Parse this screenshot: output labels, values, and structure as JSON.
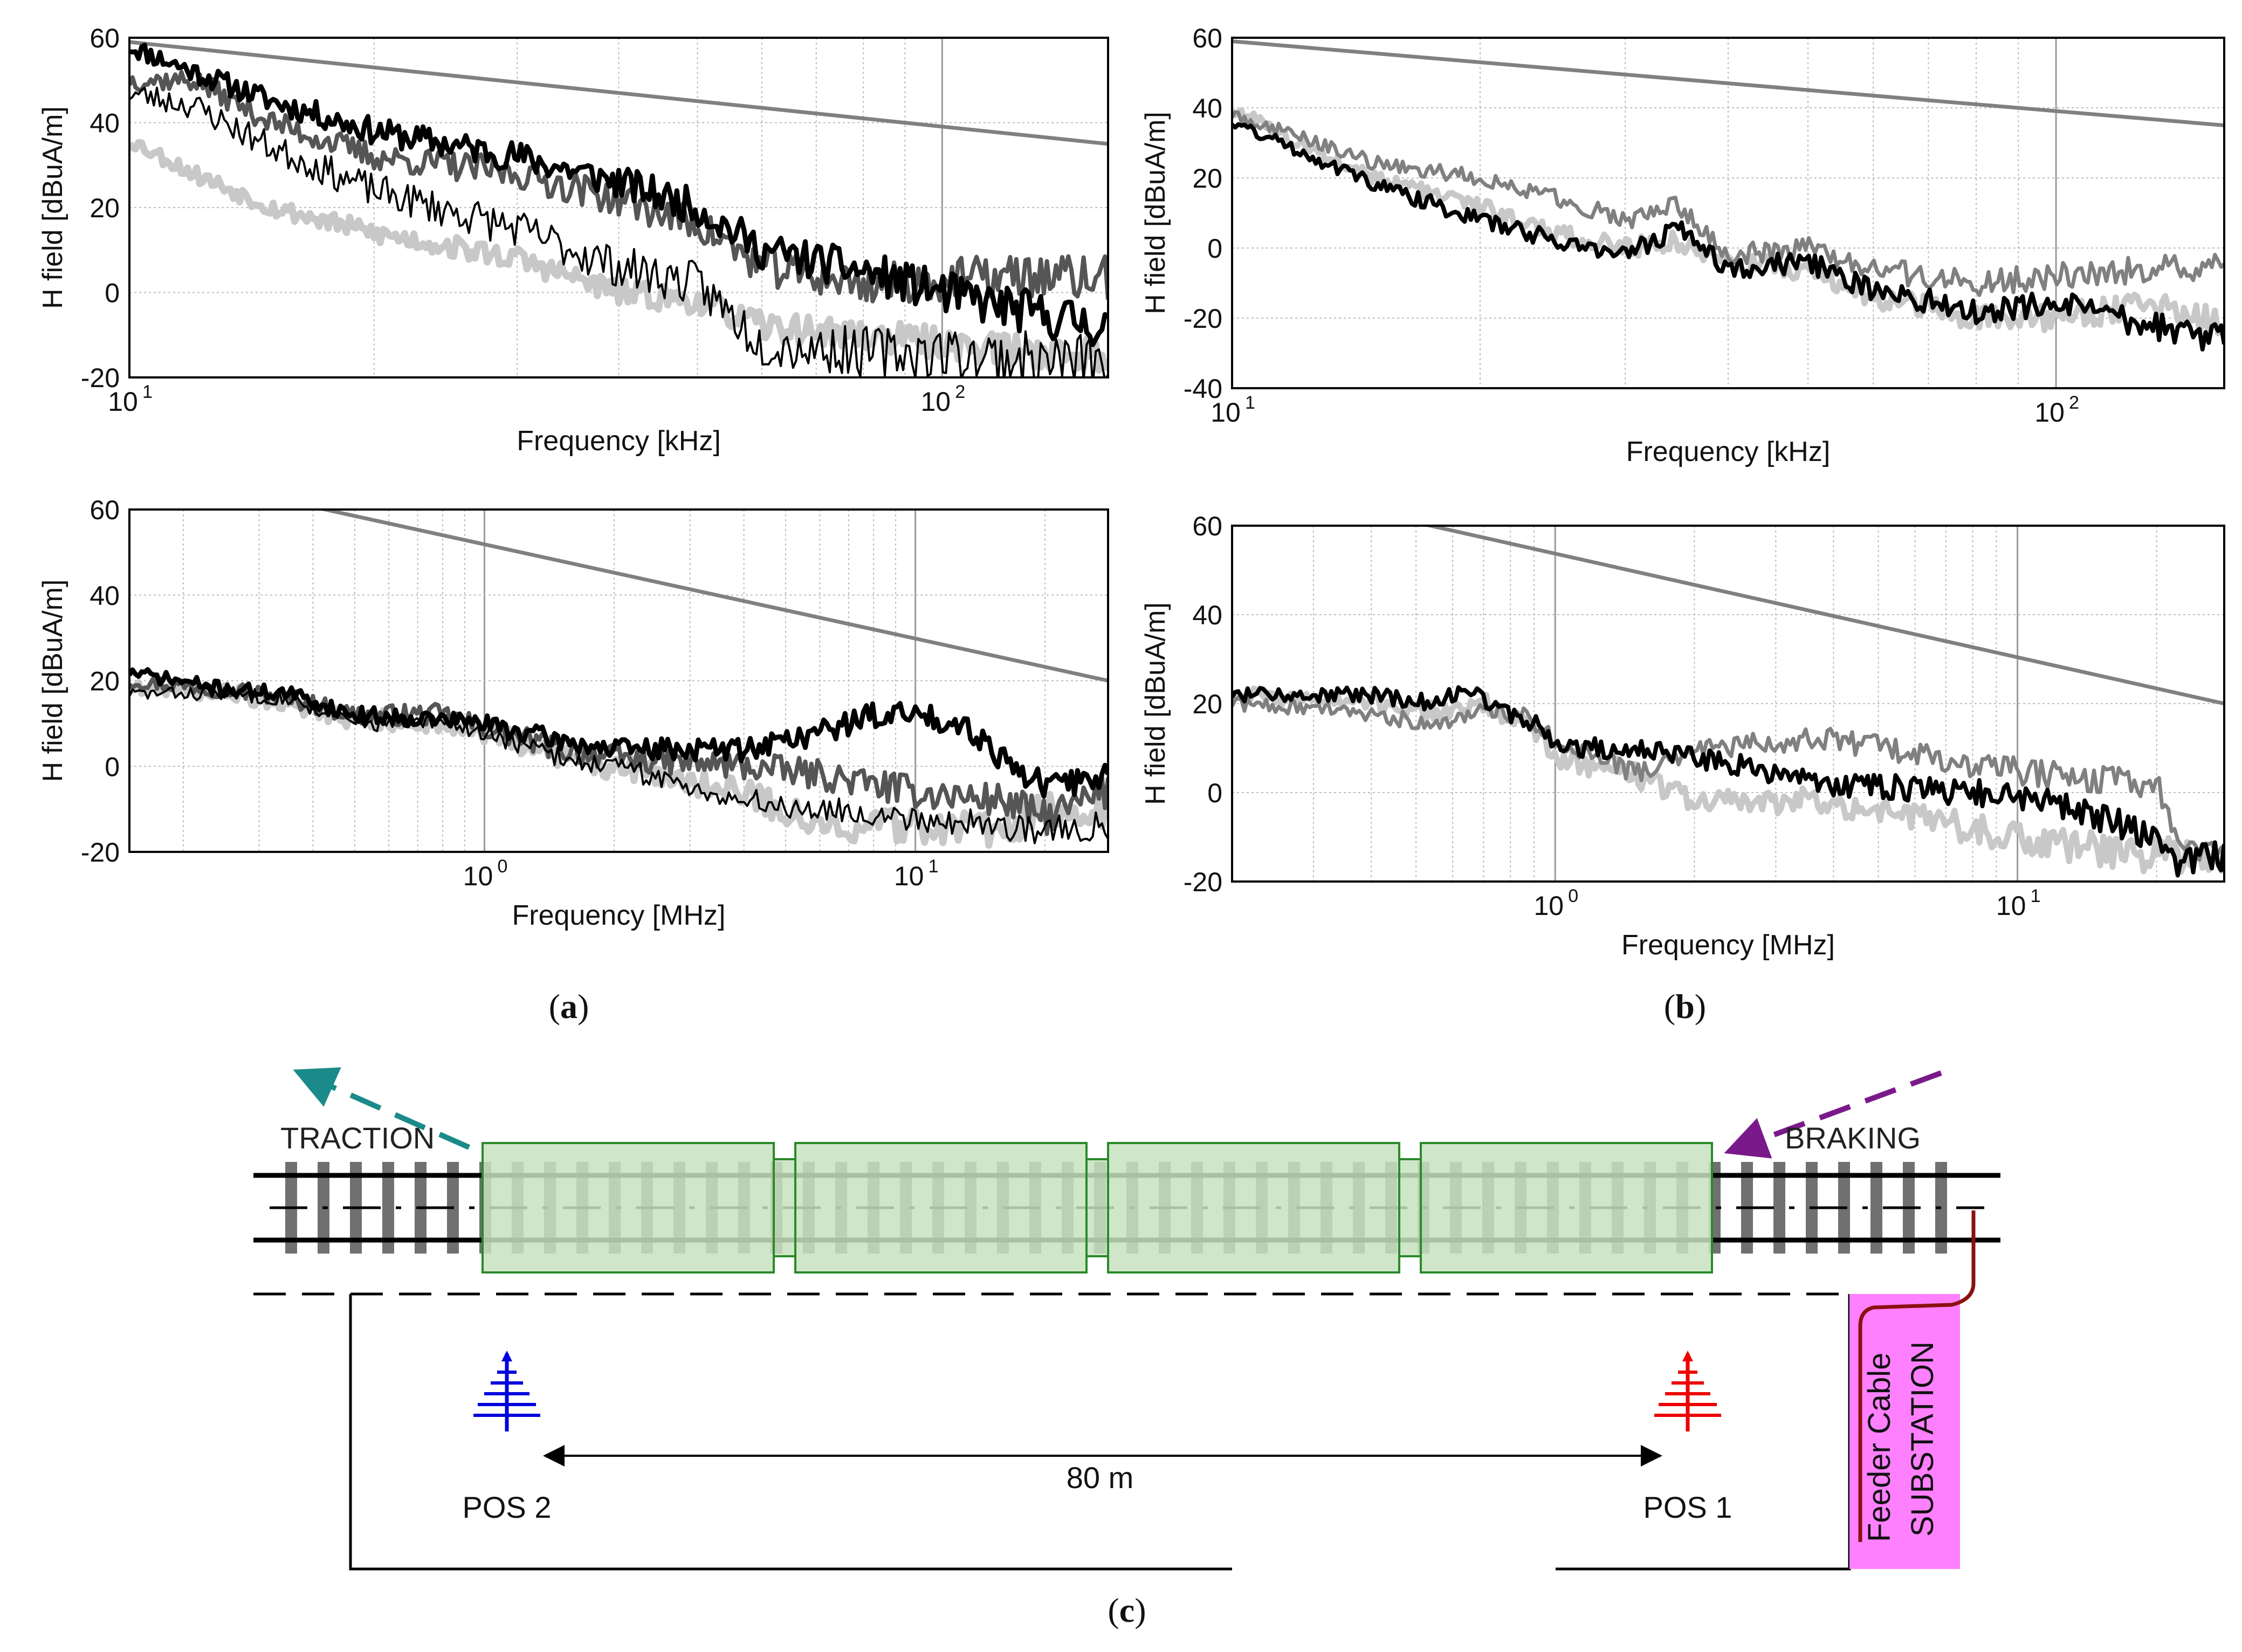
{
  "style": {
    "limit_color": "#808080",
    "series_black": "#000000",
    "series_dark_gray": "#555555",
    "series_mid_gray": "#808080",
    "series_light_gray": "#c8c8c8"
  },
  "captions": {
    "a": "a",
    "b": "b",
    "c": "c"
  },
  "chart_data": [
    {
      "id": "a-low",
      "type": "line",
      "xscale": "log",
      "xlim": [
        10,
        160
      ],
      "ylim": [
        -20,
        60
      ],
      "yticks": [
        -20,
        0,
        20,
        40,
        60
      ],
      "xticks": [
        {
          "v": 10,
          "b": "10",
          "e": "1"
        },
        {
          "v": 100,
          "b": "10",
          "e": "2"
        }
      ],
      "xlabel": "Frequency [kHz]",
      "ylabel": "H field [dBuA/m]",
      "limit_line": {
        "x": [
          10,
          160
        ],
        "y": [
          59,
          35
        ]
      },
      "series": [
        {
          "name": "black thick",
          "color": "#000000",
          "width": 9,
          "seed": 11,
          "noise": 4,
          "points": [
            [
              10,
              58
            ],
            [
              12,
              52
            ],
            [
              15,
              45
            ],
            [
              20,
              38
            ],
            [
              30,
              32
            ],
            [
              40,
              26
            ],
            [
              50,
              20
            ],
            [
              60,
              10
            ],
            [
              80,
              5
            ],
            [
              100,
              0
            ],
            [
              130,
              -5
            ],
            [
              160,
              -8
            ]
          ]
        },
        {
          "name": "black thin",
          "color": "#000000",
          "width": 4,
          "seed": 23,
          "noise": 5,
          "points": [
            [
              10,
              47
            ],
            [
              12,
              44
            ],
            [
              15,
              34
            ],
            [
              20,
              24
            ],
            [
              30,
              15
            ],
            [
              40,
              6
            ],
            [
              50,
              2
            ],
            [
              60,
              -12
            ],
            [
              80,
              -14
            ],
            [
              100,
              -14
            ],
            [
              130,
              -16
            ],
            [
              160,
              -16
            ]
          ]
        },
        {
          "name": "dark gray",
          "color": "#555555",
          "width": 8,
          "seed": 37,
          "noise": 4,
          "points": [
            [
              10,
              50
            ],
            [
              12,
              50
            ],
            [
              15,
              40
            ],
            [
              20,
              32
            ],
            [
              30,
              28
            ],
            [
              40,
              22
            ],
            [
              50,
              16
            ],
            [
              60,
              6
            ],
            [
              80,
              2
            ],
            [
              100,
              3
            ],
            [
              130,
              4
            ],
            [
              160,
              3
            ]
          ]
        },
        {
          "name": "light gray",
          "color": "#c8c8c8",
          "width": 13,
          "seed": 53,
          "noise": 3,
          "points": [
            [
              10,
              36
            ],
            [
              12,
              28
            ],
            [
              15,
              20
            ],
            [
              20,
              14
            ],
            [
              30,
              8
            ],
            [
              40,
              0
            ],
            [
              50,
              -2
            ],
            [
              60,
              -8
            ],
            [
              80,
              -10
            ],
            [
              100,
              -12
            ],
            [
              130,
              -14
            ],
            [
              160,
              -15
            ]
          ]
        }
      ]
    },
    {
      "id": "a-high",
      "type": "line",
      "xscale": "log",
      "xlim": [
        0.15,
        28
      ],
      "ylim": [
        -20,
        60
      ],
      "yticks": [
        -20,
        0,
        20,
        40,
        60
      ],
      "xticks": [
        {
          "v": 1,
          "b": "10",
          "e": "0"
        },
        {
          "v": 10,
          "b": "10",
          "e": "1"
        }
      ],
      "xlabel": "Frequency [MHz]",
      "ylabel": "H field [dBuA/m]",
      "limit_line": {
        "x": [
          0.15,
          28
        ],
        "y": [
          70,
          20
        ]
      },
      "series": [
        {
          "name": "black thick",
          "color": "#000000",
          "width": 9,
          "seed": 71,
          "noise": 2.5,
          "points": [
            [
              0.15,
              22
            ],
            [
              0.25,
              18
            ],
            [
              0.35,
              17
            ],
            [
              0.5,
              12
            ],
            [
              0.8,
              11
            ],
            [
              1,
              10
            ],
            [
              1.5,
              6
            ],
            [
              2,
              4
            ],
            [
              4,
              4
            ],
            [
              6,
              8
            ],
            [
              8,
              12
            ],
            [
              10,
              12
            ],
            [
              13,
              10
            ],
            [
              16,
              2
            ],
            [
              20,
              -5
            ],
            [
              28,
              -2
            ]
          ]
        },
        {
          "name": "black thin",
          "color": "#000000",
          "width": 4,
          "seed": 83,
          "noise": 2.5,
          "points": [
            [
              0.15,
              17
            ],
            [
              0.25,
              17
            ],
            [
              0.35,
              16
            ],
            [
              0.5,
              10
            ],
            [
              0.8,
              10
            ],
            [
              1,
              8
            ],
            [
              1.5,
              2
            ],
            [
              2,
              0
            ],
            [
              4,
              -8
            ],
            [
              6,
              -10
            ],
            [
              10,
              -12
            ],
            [
              16,
              -14
            ],
            [
              20,
              -15
            ],
            [
              28,
              -14
            ]
          ]
        },
        {
          "name": "dark gray",
          "color": "#555555",
          "width": 8,
          "seed": 97,
          "noise": 3,
          "points": [
            [
              0.15,
              20
            ],
            [
              0.25,
              18
            ],
            [
              0.35,
              16
            ],
            [
              0.5,
              12
            ],
            [
              0.8,
              12
            ],
            [
              1,
              9
            ],
            [
              1.5,
              4
            ],
            [
              2,
              2
            ],
            [
              4,
              0
            ],
            [
              6,
              -2
            ],
            [
              10,
              -6
            ],
            [
              16,
              -8
            ],
            [
              20,
              -12
            ],
            [
              28,
              -6
            ]
          ]
        },
        {
          "name": "light gray",
          "color": "#c8c8c8",
          "width": 13,
          "seed": 109,
          "noise": 3,
          "points": [
            [
              0.15,
              19
            ],
            [
              0.25,
              17
            ],
            [
              0.35,
              15
            ],
            [
              0.5,
              11
            ],
            [
              0.8,
              10
            ],
            [
              1,
              8
            ],
            [
              1.5,
              2
            ],
            [
              2,
              0
            ],
            [
              4,
              -6
            ],
            [
              6,
              -14
            ],
            [
              10,
              -14
            ],
            [
              16,
              -15
            ],
            [
              20,
              -10
            ],
            [
              28,
              -10
            ]
          ]
        }
      ]
    },
    {
      "id": "b-low",
      "type": "line",
      "xscale": "log",
      "xlim": [
        10,
        160
      ],
      "ylim": [
        -40,
        60
      ],
      "yticks": [
        -40,
        -20,
        0,
        20,
        40,
        60
      ],
      "xticks": [
        {
          "v": 10,
          "b": "10",
          "e": "1"
        },
        {
          "v": 100,
          "b": "10",
          "e": "2"
        }
      ],
      "xlabel": "Frequency [kHz]",
      "ylabel": "H field [dBuA/m]",
      "limit_line": {
        "x": [
          10,
          160
        ],
        "y": [
          59,
          35
        ]
      },
      "series": [
        {
          "name": "black",
          "color": "#000000",
          "width": 8,
          "seed": 131,
          "noise": 3,
          "points": [
            [
              10,
              36
            ],
            [
              12,
              28
            ],
            [
              15,
              18
            ],
            [
              20,
              8
            ],
            [
              25,
              2
            ],
            [
              30,
              -2
            ],
            [
              35,
              6
            ],
            [
              40,
              -6
            ],
            [
              50,
              -4
            ],
            [
              60,
              -12
            ],
            [
              80,
              -18
            ],
            [
              100,
              -16
            ],
            [
              130,
              -22
            ],
            [
              160,
              -26
            ]
          ]
        },
        {
          "name": "dark gray",
          "color": "#808080",
          "width": 7,
          "seed": 149,
          "noise": 3,
          "points": [
            [
              10,
              38
            ],
            [
              12,
              32
            ],
            [
              15,
              24
            ],
            [
              20,
              20
            ],
            [
              25,
              14
            ],
            [
              30,
              8
            ],
            [
              35,
              12
            ],
            [
              40,
              -2
            ],
            [
              50,
              0
            ],
            [
              60,
              -6
            ],
            [
              80,
              -10
            ],
            [
              100,
              -8
            ],
            [
              130,
              -6
            ],
            [
              160,
              -6
            ]
          ]
        },
        {
          "name": "light gray",
          "color": "#c8c8c8",
          "width": 11,
          "seed": 163,
          "noise": 3,
          "points": [
            [
              10,
              40
            ],
            [
              12,
              30
            ],
            [
              15,
              20
            ],
            [
              20,
              12
            ],
            [
              25,
              4
            ],
            [
              30,
              0
            ],
            [
              35,
              2
            ],
            [
              40,
              -4
            ],
            [
              50,
              -6
            ],
            [
              60,
              -14
            ],
            [
              80,
              -20
            ],
            [
              100,
              -20
            ],
            [
              130,
              -16
            ],
            [
              160,
              -22
            ]
          ]
        }
      ]
    },
    {
      "id": "b-high",
      "type": "line",
      "xscale": "log",
      "xlim": [
        0.2,
        28
      ],
      "ylim": [
        -20,
        60
      ],
      "yticks": [
        -20,
        0,
        20,
        40,
        60
      ],
      "xticks": [
        {
          "v": 1,
          "b": "10",
          "e": "0"
        },
        {
          "v": 10,
          "b": "10",
          "e": "1"
        }
      ],
      "xlabel": "Frequency [MHz]",
      "ylabel": "H field [dBuA/m]",
      "limit_line": {
        "x": [
          0.2,
          28
        ],
        "y": [
          70,
          20
        ]
      },
      "series": [
        {
          "name": "black",
          "color": "#000000",
          "width": 8,
          "seed": 181,
          "noise": 2.5,
          "points": [
            [
              0.2,
              22
            ],
            [
              0.3,
              22
            ],
            [
              0.4,
              22
            ],
            [
              0.55,
              20
            ],
            [
              0.65,
              24
            ],
            [
              0.75,
              18
            ],
            [
              0.9,
              16
            ],
            [
              1,
              10
            ],
            [
              1.5,
              10
            ],
            [
              2,
              8
            ],
            [
              4,
              2
            ],
            [
              8,
              0
            ],
            [
              12,
              -2
            ],
            [
              20,
              -10
            ],
            [
              22,
              -16
            ],
            [
              28,
              -14
            ]
          ]
        },
        {
          "name": "dark gray",
          "color": "#808080",
          "width": 7,
          "seed": 193,
          "noise": 2.5,
          "points": [
            [
              0.2,
              20
            ],
            [
              0.3,
              19
            ],
            [
              0.4,
              17
            ],
            [
              0.55,
              16
            ],
            [
              0.7,
              18
            ],
            [
              0.85,
              18
            ],
            [
              1,
              12
            ],
            [
              1.5,
              4
            ],
            [
              2,
              10
            ],
            [
              4,
              12
            ],
            [
              8,
              6
            ],
            [
              12,
              4
            ],
            [
              20,
              2
            ],
            [
              22,
              -12
            ],
            [
              28,
              -12
            ]
          ]
        },
        {
          "name": "light gray",
          "color": "#c8c8c8",
          "width": 11,
          "seed": 211,
          "noise": 3,
          "points": [
            [
              0.2,
              22
            ],
            [
              0.3,
              21
            ],
            [
              0.4,
              20
            ],
            [
              0.55,
              18
            ],
            [
              0.7,
              20
            ],
            [
              0.85,
              16
            ],
            [
              1,
              8
            ],
            [
              1.5,
              4
            ],
            [
              2,
              -2
            ],
            [
              4,
              -2
            ],
            [
              8,
              -8
            ],
            [
              12,
              -12
            ],
            [
              20,
              -14
            ],
            [
              22,
              -14
            ],
            [
              28,
              -14
            ]
          ]
        }
      ]
    }
  ],
  "diagram": {
    "traction_label": "TRACTION",
    "braking_label": "BRAKING",
    "distance_label": "80 m",
    "pos2_label": "POS 2",
    "pos1_label": "POS 1",
    "feeder_label": "Feeder Cable",
    "substation_label": "SUBSTATION",
    "traction_arrow_color": "#1a8a8a",
    "braking_arrow_color": "#7a1a8a",
    "pos2_color": "#0000dd",
    "pos1_color": "#ee0000",
    "substation_color": "#ff80ff",
    "feeder_color": "#8b1010",
    "car_fill": "#c8e2c0",
    "car_stroke": "#2a8a2a",
    "sleeper_color": "#707070"
  }
}
